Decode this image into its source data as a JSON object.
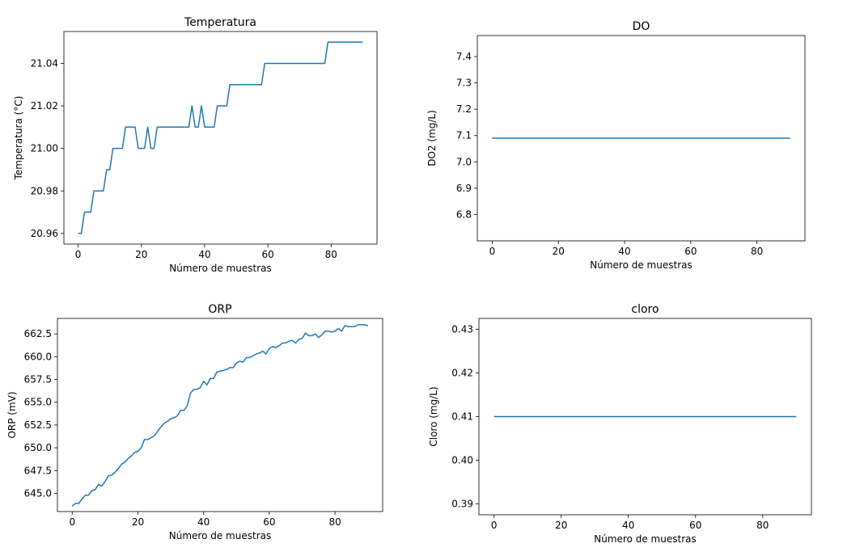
{
  "chart_data": [
    {
      "type": "line",
      "title": "Temperatura",
      "xlabel": "Número de muestras",
      "ylabel": "Temperatura (°C)",
      "xlim": [
        -4.5,
        94.5
      ],
      "ylim": [
        20.955,
        21.055
      ],
      "xticks": [
        0,
        20,
        40,
        60,
        80
      ],
      "yticks": [
        20.96,
        20.98,
        21.0,
        21.02,
        21.04
      ],
      "ytick_labels": [
        "20.96",
        "20.98",
        "21.00",
        "21.02",
        "21.04"
      ],
      "color": "#1f77b4",
      "series": [
        {
          "x": [
            0,
            1,
            2,
            3,
            4,
            5,
            6,
            7,
            8,
            9,
            10,
            11,
            12,
            13,
            14,
            15,
            16,
            17,
            18,
            19,
            20,
            21,
            22,
            23,
            24,
            25,
            26,
            27,
            28,
            29,
            30,
            31,
            32,
            33,
            34,
            35,
            36,
            37,
            38,
            39,
            40,
            41,
            42,
            43,
            44,
            45,
            46,
            47,
            48,
            49,
            50,
            51,
            52,
            53,
            54,
            55,
            56,
            57,
            58,
            59,
            60,
            61,
            62,
            63,
            64,
            65,
            66,
            67,
            68,
            69,
            70,
            71,
            72,
            73,
            74,
            75,
            76,
            77,
            78,
            79,
            80,
            81,
            82,
            83,
            84,
            85,
            86,
            87,
            88,
            89,
            90
          ],
          "y": [
            20.96,
            20.96,
            20.97,
            20.97,
            20.97,
            20.98,
            20.98,
            20.98,
            20.98,
            20.99,
            20.99,
            21.0,
            21.0,
            21.0,
            21.0,
            21.01,
            21.01,
            21.01,
            21.01,
            21.0,
            21.0,
            21.0,
            21.01,
            21.0,
            21.0,
            21.01,
            21.01,
            21.01,
            21.01,
            21.01,
            21.01,
            21.01,
            21.01,
            21.01,
            21.01,
            21.01,
            21.02,
            21.01,
            21.01,
            21.02,
            21.01,
            21.01,
            21.01,
            21.01,
            21.02,
            21.02,
            21.02,
            21.02,
            21.03,
            21.03,
            21.03,
            21.03,
            21.03,
            21.03,
            21.03,
            21.03,
            21.03,
            21.03,
            21.03,
            21.04,
            21.04,
            21.04,
            21.04,
            21.04,
            21.04,
            21.04,
            21.04,
            21.04,
            21.04,
            21.04,
            21.04,
            21.04,
            21.04,
            21.04,
            21.04,
            21.04,
            21.04,
            21.04,
            21.04,
            21.05,
            21.05,
            21.05,
            21.05,
            21.05,
            21.05,
            21.05,
            21.05,
            21.05,
            21.05,
            21.05,
            21.05
          ]
        }
      ]
    },
    {
      "type": "line",
      "title": "DO",
      "xlabel": "Número de muestras",
      "ylabel": "DO2 (mg/L)",
      "xlim": [
        -4.5,
        94.5
      ],
      "ylim": [
        6.7,
        7.48
      ],
      "xticks": [
        0,
        20,
        40,
        60,
        80
      ],
      "yticks": [
        6.8,
        6.9,
        7.0,
        7.1,
        7.2,
        7.3,
        7.4
      ],
      "ytick_labels": [
        "6.8",
        "6.9",
        "7.0",
        "7.1",
        "7.2",
        "7.3",
        "7.4"
      ],
      "color": "#1f77b4",
      "series": [
        {
          "x": [
            0,
            90
          ],
          "y": [
            7.09,
            7.09
          ]
        }
      ]
    },
    {
      "type": "line",
      "title": "ORP",
      "xlabel": "Número de muestras",
      "ylabel": "ORP (mV)",
      "xlim": [
        -4.5,
        94.5
      ],
      "ylim": [
        643.0,
        664.2
      ],
      "xticks": [
        0,
        20,
        40,
        60,
        80
      ],
      "yticks": [
        645.0,
        647.5,
        650.0,
        652.5,
        655.0,
        657.5,
        660.0,
        662.5
      ],
      "ytick_labels": [
        "645.0",
        "647.5",
        "650.0",
        "652.5",
        "655.0",
        "657.5",
        "660.0",
        "662.5"
      ],
      "color": "#1f77b4",
      "series": [
        {
          "x": [
            0,
            1,
            2,
            3,
            4,
            5,
            6,
            7,
            8,
            9,
            10,
            11,
            12,
            13,
            14,
            15,
            16,
            17,
            18,
            19,
            20,
            21,
            22,
            23,
            24,
            25,
            26,
            27,
            28,
            29,
            30,
            31,
            32,
            33,
            34,
            35,
            36,
            37,
            38,
            39,
            40,
            41,
            42,
            43,
            44,
            45,
            46,
            47,
            48,
            49,
            50,
            51,
            52,
            53,
            54,
            55,
            56,
            57,
            58,
            59,
            60,
            61,
            62,
            63,
            64,
            65,
            66,
            67,
            68,
            69,
            70,
            71,
            72,
            73,
            74,
            75,
            76,
            77,
            78,
            79,
            80,
            81,
            82,
            83,
            84,
            85,
            86,
            87,
            88,
            89,
            90
          ],
          "y": [
            643.6,
            643.9,
            643.9,
            644.4,
            644.8,
            644.8,
            645.3,
            645.4,
            646.0,
            645.8,
            646.3,
            646.9,
            647.0,
            647.3,
            647.7,
            648.2,
            648.4,
            648.8,
            649.1,
            649.5,
            649.6,
            650.0,
            650.9,
            650.9,
            651.1,
            651.3,
            651.8,
            652.3,
            652.7,
            652.9,
            653.2,
            653.3,
            653.5,
            654.1,
            654.1,
            654.6,
            656.0,
            656.4,
            656.4,
            656.6,
            657.3,
            656.9,
            657.6,
            657.6,
            658.3,
            658.4,
            658.5,
            658.6,
            658.8,
            658.8,
            659.3,
            659.5,
            659.4,
            659.9,
            659.9,
            660.1,
            660.3,
            660.4,
            660.6,
            660.3,
            660.9,
            661.1,
            661.0,
            661.2,
            661.5,
            661.5,
            661.7,
            661.8,
            661.5,
            661.9,
            662.0,
            662.6,
            662.3,
            662.3,
            662.5,
            662.1,
            662.4,
            662.8,
            662.8,
            662.7,
            662.8,
            663.1,
            662.8,
            663.4,
            663.3,
            663.3,
            663.3,
            663.5,
            663.5,
            663.5,
            663.4
          ]
        }
      ]
    },
    {
      "type": "line",
      "title": "cloro",
      "xlabel": "Número de muestras",
      "ylabel": "Cloro (mg/L)",
      "xlim": [
        -4.5,
        94.5
      ],
      "ylim": [
        0.3875,
        0.4325
      ],
      "xticks": [
        0,
        20,
        40,
        60,
        80
      ],
      "yticks": [
        0.39,
        0.4,
        0.41,
        0.42,
        0.43
      ],
      "ytick_labels": [
        "0.39",
        "0.40",
        "0.41",
        "0.42",
        "0.43"
      ],
      "color": "#1f77b4",
      "series": [
        {
          "x": [
            0,
            90
          ],
          "y": [
            0.41,
            0.41
          ]
        }
      ]
    }
  ]
}
